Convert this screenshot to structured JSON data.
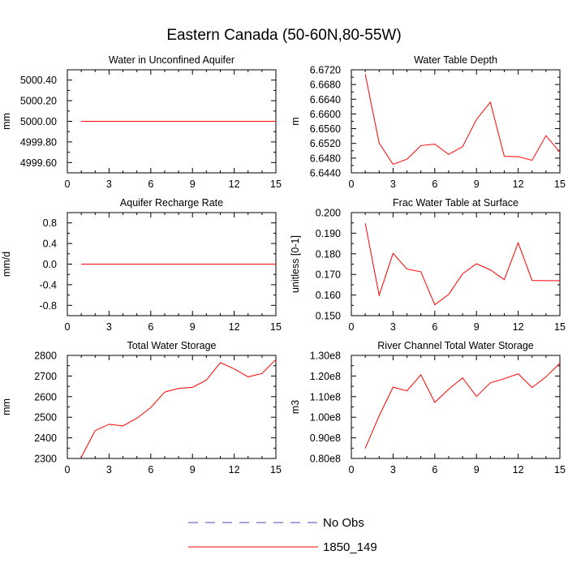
{
  "figure": {
    "title": "Eastern Canada (50-60N,80-55W)"
  },
  "colors": {
    "model_line": "#ff0000",
    "obs_line": "#4a4ab0",
    "axis": "#000000"
  },
  "legend": {
    "placement": "bottom-center",
    "entries": [
      {
        "label": "No Obs",
        "style": "dashed",
        "color": "#4a4ab0"
      },
      {
        "label": "1850_149",
        "style": "solid",
        "color": "#ff0000"
      }
    ]
  },
  "chart_data": [
    {
      "type": "line",
      "title": "Water in Unconfined Aquifer",
      "ylabel": "mm",
      "xlim": [
        0,
        15
      ],
      "ylim": [
        4999.5,
        5000.5
      ],
      "xticks": [
        0,
        3,
        6,
        9,
        12,
        15
      ],
      "yticks": [
        4999.6,
        4999.8,
        5000.0,
        5000.2,
        5000.4
      ],
      "ytick_labels": [
        "4999.60",
        "4999.80",
        "5000.00",
        "5000.20",
        "5000.40"
      ],
      "series": [
        {
          "name": "1850_149",
          "x": [
            1,
            2,
            3,
            4,
            5,
            6,
            7,
            8,
            9,
            10,
            11,
            12,
            13,
            14,
            15
          ],
          "values": [
            5000,
            5000,
            5000,
            5000,
            5000,
            5000,
            5000,
            5000,
            5000,
            5000,
            5000,
            5000,
            5000,
            5000,
            5000
          ]
        }
      ]
    },
    {
      "type": "line",
      "title": "Water Table Depth",
      "ylabel": "m",
      "xlim": [
        0,
        15
      ],
      "ylim": [
        6.644,
        6.672
      ],
      "xticks": [
        0,
        3,
        6,
        9,
        12,
        15
      ],
      "yticks": [
        6.644,
        6.648,
        6.652,
        6.656,
        6.66,
        6.664,
        6.668,
        6.672
      ],
      "ytick_labels": [
        "6.6440",
        "6.6480",
        "6.6520",
        "6.6560",
        "6.6600",
        "6.6640",
        "6.6680",
        "6.6720"
      ],
      "series": [
        {
          "name": "1850_149",
          "x": [
            1,
            2,
            3,
            4,
            5,
            6,
            7,
            8,
            9,
            10,
            11,
            12,
            13,
            14,
            15
          ],
          "values": [
            6.6708,
            6.6521,
            6.6463,
            6.6477,
            6.6514,
            6.6518,
            6.649,
            6.6511,
            6.6585,
            6.6632,
            6.6485,
            6.6484,
            6.6474,
            6.6541,
            6.6496
          ]
        }
      ]
    },
    {
      "type": "line",
      "title": "Aquifer Recharge Rate",
      "ylabel": "mm/d",
      "xlim": [
        0,
        15
      ],
      "ylim": [
        -1.0,
        1.0
      ],
      "xticks": [
        0,
        3,
        6,
        9,
        12,
        15
      ],
      "yticks": [
        -0.8,
        -0.4,
        0.0,
        0.4,
        0.8
      ],
      "ytick_labels": [
        "-0.8",
        "-0.4",
        "0.0",
        "0.4",
        "0.8"
      ],
      "series": [
        {
          "name": "1850_149",
          "x": [
            1,
            2,
            3,
            4,
            5,
            6,
            7,
            8,
            9,
            10,
            11,
            12,
            13,
            14,
            15
          ],
          "values": [
            0,
            0,
            0,
            0,
            0,
            0,
            0,
            0,
            0,
            0,
            0,
            0,
            0,
            0,
            0
          ]
        }
      ]
    },
    {
      "type": "line",
      "title": "Frac Water Table at Surface",
      "ylabel": "unitless [0-1]",
      "xlim": [
        0,
        15
      ],
      "ylim": [
        0.15,
        0.2
      ],
      "xticks": [
        0,
        3,
        6,
        9,
        12,
        15
      ],
      "yticks": [
        0.15,
        0.16,
        0.17,
        0.18,
        0.19,
        0.2
      ],
      "ytick_labels": [
        "0.150",
        "0.160",
        "0.170",
        "0.180",
        "0.190",
        "0.200"
      ],
      "series": [
        {
          "name": "1850_149",
          "x": [
            1,
            2,
            3,
            4,
            5,
            6,
            7,
            8,
            9,
            10,
            11,
            12,
            13,
            14,
            15
          ],
          "values": [
            0.1948,
            0.1599,
            0.1802,
            0.1726,
            0.1713,
            0.1553,
            0.1603,
            0.1703,
            0.1752,
            0.1722,
            0.1675,
            0.1853,
            0.1671,
            0.167,
            0.167
          ]
        }
      ]
    },
    {
      "type": "line",
      "title": "Total Water Storage",
      "ylabel": "mm",
      "xlim": [
        0,
        15
      ],
      "ylim": [
        2300,
        2800
      ],
      "xticks": [
        0,
        3,
        6,
        9,
        12,
        15
      ],
      "yticks": [
        2300,
        2400,
        2500,
        2600,
        2700,
        2800
      ],
      "ytick_labels": [
        "2300",
        "2400",
        "2500",
        "2600",
        "2700",
        "2800"
      ],
      "series": [
        {
          "name": "1850_149",
          "x": [
            1,
            2,
            3,
            4,
            5,
            6,
            7,
            8,
            9,
            10,
            11,
            12,
            13,
            14,
            15
          ],
          "values": [
            2306,
            2435,
            2466,
            2458,
            2495,
            2547,
            2622,
            2640,
            2645,
            2680,
            2765,
            2735,
            2696,
            2712,
            2780
          ]
        }
      ]
    },
    {
      "type": "line",
      "title": "River Channel Total Water Storage",
      "ylabel": "m3",
      "xlim": [
        0,
        15
      ],
      "ylim": [
        80000000.0,
        130000000.0
      ],
      "xticks": [
        0,
        3,
        6,
        9,
        12,
        15
      ],
      "yticks": [
        80000000.0,
        90000000.0,
        100000000.0,
        110000000.0,
        120000000.0,
        130000000.0
      ],
      "ytick_labels": [
        "0.80e8",
        "0.90e8",
        "1.00e8",
        "1.10e8",
        "1.20e8",
        "1.30e8"
      ],
      "series": [
        {
          "name": "1850_149",
          "x": [
            1,
            2,
            3,
            4,
            5,
            6,
            7,
            8,
            9,
            10,
            11,
            12,
            13,
            14,
            15
          ],
          "values": [
            84900000.0,
            100700000.0,
            114600000.0,
            112800000.0,
            120600000.0,
            107200000.0,
            113600000.0,
            119100000.0,
            110100000.0,
            116700000.0,
            118700000.0,
            121100000.0,
            114400000.0,
            119600000.0,
            126200000.0
          ]
        }
      ]
    }
  ]
}
